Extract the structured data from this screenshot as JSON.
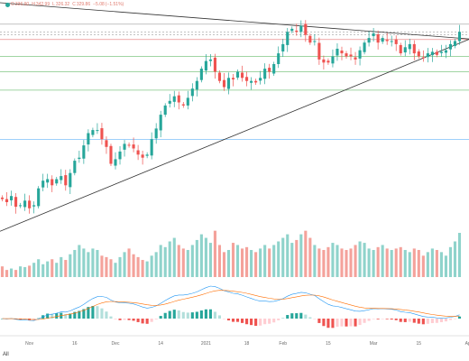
{
  "legend": {
    "open_label": "O",
    "open": "336.90",
    "high_label": "H",
    "high": "342.99",
    "low_label": "L",
    "low": "326.32",
    "close_label": "C",
    "close": "329.86",
    "change": "−5.08",
    "change_pct": "(−1.51%)"
  },
  "controls": {
    "range_label": "All"
  },
  "colors": {
    "up": "#26a69a",
    "down": "#ef5350",
    "up_volume": "#8fd3cb",
    "down_volume": "#f4a29b",
    "macd_line": "#2196f3",
    "signal_line": "#ff6d00",
    "trendline": "#333333",
    "hline_red": "#e57373",
    "hline_green": "#81c784",
    "hline_blue": "#64b5f6",
    "hline_gray": "#9e9e9e"
  },
  "chart_data": {
    "type": "candlestick",
    "x_tick_labels": [
      "Nov",
      "16",
      "Dec",
      "14",
      "2021",
      "18",
      "Feb",
      "15",
      "Mar",
      "15",
      "Apr"
    ],
    "x_tick_index": [
      6,
      16,
      25,
      35,
      45,
      54,
      62,
      72,
      82,
      92,
      103
    ],
    "candles_start": {
      "open": 268,
      "close": 267
    },
    "closes": [
      267,
      265,
      269,
      262,
      263,
      266,
      261,
      263,
      274,
      279,
      280,
      276,
      280,
      282,
      276,
      284,
      292,
      294,
      302,
      310,
      312,
      312,
      306,
      301,
      290,
      293,
      298,
      303,
      302,
      300,
      296,
      294,
      296,
      306,
      313,
      322,
      328,
      331,
      334,
      330,
      328,
      333,
      339,
      344,
      352,
      357,
      358,
      350,
      344,
      340,
      346,
      345,
      350,
      346,
      344,
      344,
      343,
      346,
      352,
      350,
      355,
      362,
      368,
      376,
      378,
      376,
      380,
      374,
      369,
      370,
      358,
      356,
      356,
      360,
      365,
      362,
      360,
      360,
      358,
      364,
      369,
      372,
      375,
      369,
      372,
      370,
      370,
      368,
      362,
      366,
      368,
      362,
      360,
      359,
      362,
      363,
      361,
      363,
      364,
      368,
      370,
      376
    ],
    "volume_y_range": [
      0,
      100
    ],
    "volumes": [
      15,
      10,
      12,
      10,
      15,
      14,
      16,
      20,
      25,
      18,
      22,
      25,
      20,
      28,
      24,
      32,
      38,
      45,
      40,
      35,
      40,
      38,
      30,
      28,
      25,
      20,
      28,
      35,
      40,
      32,
      28,
      24,
      22,
      30,
      35,
      45,
      42,
      50,
      55,
      45,
      40,
      38,
      45,
      52,
      60,
      55,
      48,
      65,
      45,
      35,
      38,
      48,
      45,
      40,
      42,
      38,
      35,
      40,
      45,
      40,
      45,
      50,
      55,
      60,
      48,
      52,
      60,
      65,
      55,
      45,
      40,
      38,
      42,
      48,
      45,
      40,
      38,
      40,
      45,
      50,
      48,
      40,
      38,
      42,
      45,
      40,
      38,
      40,
      42,
      38,
      35,
      40,
      38,
      30,
      35,
      40,
      38,
      35,
      30,
      42,
      50,
      62
    ],
    "price_y_range": [
      245,
      385
    ],
    "hlines": [
      {
        "price": 381,
        "color": "hline_gray",
        "style": "solid"
      },
      {
        "price": 376,
        "color": "hline_gray",
        "style": "dashed"
      },
      {
        "price": 374,
        "color": "hline_gray",
        "style": "dashed"
      },
      {
        "price": 371,
        "color": "hline_red",
        "style": "solid"
      },
      {
        "price": 360,
        "color": "hline_green",
        "style": "solid"
      },
      {
        "price": 350,
        "color": "hline_green",
        "style": "solid"
      },
      {
        "price": 338,
        "color": "hline_green",
        "style": "solid"
      },
      {
        "price": 306,
        "color": "hline_blue",
        "style": "solid"
      }
    ],
    "trendlines": [
      {
        "from": {
          "index": 0,
          "price": 395
        },
        "to": {
          "index": 101,
          "price": 372
        }
      },
      {
        "from": {
          "index": 0,
          "price": 246
        },
        "to": {
          "index": 101,
          "price": 368
        }
      }
    ]
  }
}
